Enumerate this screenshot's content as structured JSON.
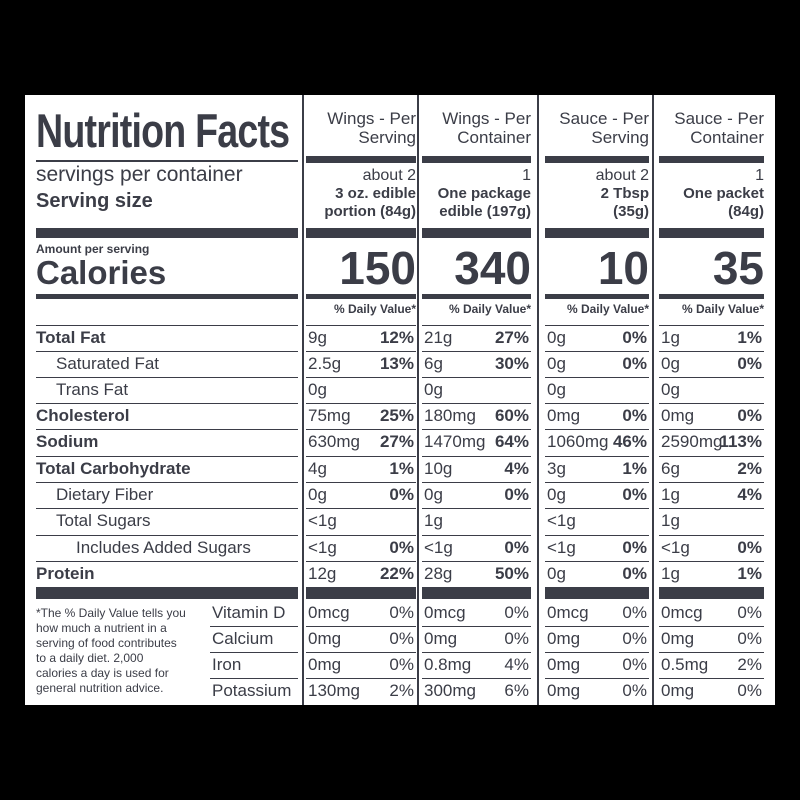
{
  "label": {
    "title": "Nutrition Facts",
    "servings_label": "servings per container",
    "serving_size_label": "Serving size",
    "amount_per_serving": "Amount per serving",
    "calories_label": "Calories",
    "footnote": [
      "*The % Daily Value tells you",
      "how much a nutrient in a",
      "serving of food contributes",
      "to a daily diet. 2,000",
      "calories a day is used for",
      "general nutrition advice."
    ]
  },
  "nutrient_labels": [
    "Total Fat",
    "Saturated Fat",
    "Trans Fat",
    "Cholesterol",
    "Sodium",
    "Total Carbohydrate",
    "Dietary Fiber",
    "Total Sugars",
    "Includes Added Sugars",
    "Protein"
  ],
  "vitamin_labels": [
    "Vitamin D",
    "Calcium",
    "Iron",
    "Potassium"
  ],
  "columns": [
    {
      "header": [
        "Wings - Per",
        "Serving"
      ],
      "servings": "about 2",
      "serving_size": [
        "3 oz. edible",
        "portion (84g)"
      ],
      "calories": "150",
      "dv_header": "% Daily Value*",
      "nutrients": [
        {
          "amt": "9g",
          "dv": "12%"
        },
        {
          "amt": "2.5g",
          "dv": "13%"
        },
        {
          "amt": "0g",
          "dv": ""
        },
        {
          "amt": "75mg",
          "dv": "25%"
        },
        {
          "amt": "630mg",
          "dv": "27%"
        },
        {
          "amt": "4g",
          "dv": "1%"
        },
        {
          "amt": "0g",
          "dv": "0%"
        },
        {
          "amt": "<1g",
          "dv": ""
        },
        {
          "amt": "<1g",
          "dv": "0%"
        },
        {
          "amt": "12g",
          "dv": "22%"
        }
      ],
      "vitamins": [
        {
          "amt": "0mcg",
          "dv": "0%"
        },
        {
          "amt": "0mg",
          "dv": "0%"
        },
        {
          "amt": "0mg",
          "dv": "0%"
        },
        {
          "amt": "130mg",
          "dv": "2%"
        }
      ]
    },
    {
      "header": [
        "Wings - Per",
        "Container"
      ],
      "servings": "1",
      "serving_size": [
        "One package",
        "edible (197g)"
      ],
      "calories": "340",
      "dv_header": "% Daily Value*",
      "nutrients": [
        {
          "amt": "21g",
          "dv": "27%"
        },
        {
          "amt": "6g",
          "dv": "30%"
        },
        {
          "amt": "0g",
          "dv": ""
        },
        {
          "amt": "180mg",
          "dv": "60%"
        },
        {
          "amt": "1470mg",
          "dv": "64%"
        },
        {
          "amt": "10g",
          "dv": "4%"
        },
        {
          "amt": "0g",
          "dv": "0%"
        },
        {
          "amt": "1g",
          "dv": ""
        },
        {
          "amt": "<1g",
          "dv": "0%"
        },
        {
          "amt": "28g",
          "dv": "50%"
        }
      ],
      "vitamins": [
        {
          "amt": "0mcg",
          "dv": "0%"
        },
        {
          "amt": "0mg",
          "dv": "0%"
        },
        {
          "amt": "0.8mg",
          "dv": "4%"
        },
        {
          "amt": "300mg",
          "dv": "6%"
        }
      ]
    },
    {
      "header": [
        "Sauce - Per",
        "Serving"
      ],
      "servings": "about 2",
      "serving_size": [
        "2 Tbsp",
        "(35g)"
      ],
      "calories": "10",
      "dv_header": "% Daily Value*",
      "nutrients": [
        {
          "amt": "0g",
          "dv": "0%"
        },
        {
          "amt": "0g",
          "dv": "0%"
        },
        {
          "amt": "0g",
          "dv": ""
        },
        {
          "amt": "0mg",
          "dv": "0%"
        },
        {
          "amt": "1060mg",
          "dv": "46%"
        },
        {
          "amt": "3g",
          "dv": "1%"
        },
        {
          "amt": "0g",
          "dv": "0%"
        },
        {
          "amt": "<1g",
          "dv": ""
        },
        {
          "amt": "<1g",
          "dv": "0%"
        },
        {
          "amt": "0g",
          "dv": "0%"
        }
      ],
      "vitamins": [
        {
          "amt": "0mcg",
          "dv": "0%"
        },
        {
          "amt": "0mg",
          "dv": "0%"
        },
        {
          "amt": "0mg",
          "dv": "0%"
        },
        {
          "amt": "0mg",
          "dv": "0%"
        }
      ]
    },
    {
      "header": [
        "Sauce - Per",
        "Container"
      ],
      "servings": "1",
      "serving_size": [
        "One packet",
        "(84g)"
      ],
      "calories": "35",
      "dv_header": "% Daily Value*",
      "nutrients": [
        {
          "amt": "1g",
          "dv": "1%"
        },
        {
          "amt": "0g",
          "dv": "0%"
        },
        {
          "amt": "0g",
          "dv": ""
        },
        {
          "amt": "0mg",
          "dv": "0%"
        },
        {
          "amt": "2590mg",
          "dv": "113%"
        },
        {
          "amt": "6g",
          "dv": "2%"
        },
        {
          "amt": "1g",
          "dv": "4%"
        },
        {
          "amt": "1g",
          "dv": ""
        },
        {
          "amt": "<1g",
          "dv": "0%"
        },
        {
          "amt": "1g",
          "dv": "1%"
        }
      ],
      "vitamins": [
        {
          "amt": "0mcg",
          "dv": "0%"
        },
        {
          "amt": "0mg",
          "dv": "0%"
        },
        {
          "amt": "0.5mg",
          "dv": "2%"
        },
        {
          "amt": "0mg",
          "dv": "0%"
        }
      ]
    }
  ]
}
